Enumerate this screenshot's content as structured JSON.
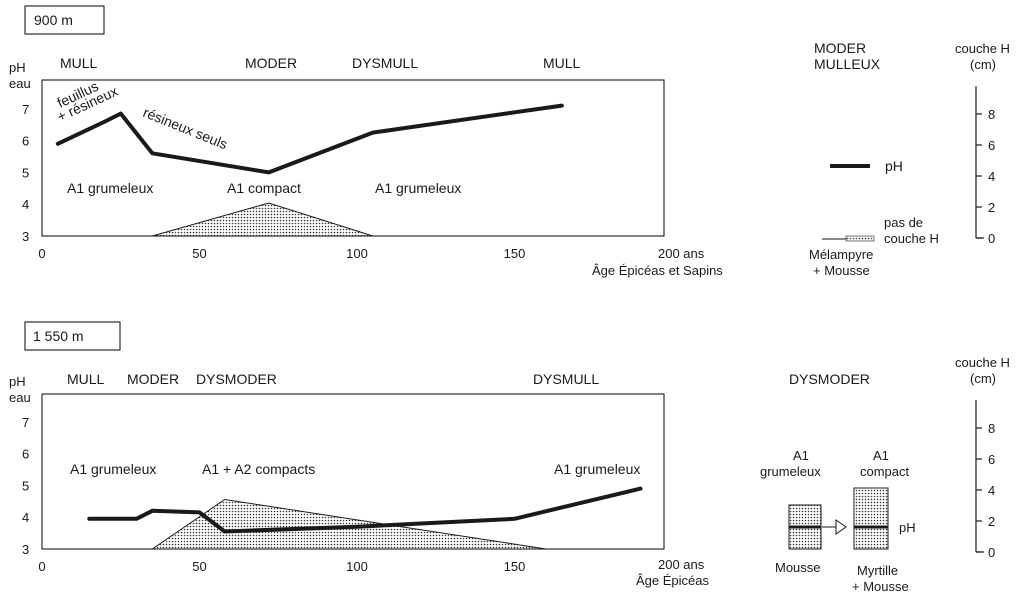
{
  "chart_data": [
    {
      "type": "line",
      "title": "900 m",
      "ylabel": "pH\neau",
      "ylim": [
        3,
        7.5
      ],
      "yticks": [
        3,
        4,
        5,
        6,
        7
      ],
      "xlim": [
        0,
        200
      ],
      "xticks": [
        0,
        50,
        100,
        150
      ],
      "x_end_label": "200 ans",
      "xlabel": "Âge Épicéas et Sapins",
      "humus_types": [
        "MULL",
        "MODER",
        "DYSMULL",
        "MULL"
      ],
      "horizon_labels": [
        "A1 grumeleux",
        "A1 compact",
        "A1 grumeleux"
      ],
      "annotations": [
        "feuillus",
        "+ résineux",
        "résineux seuls"
      ],
      "series": [
        {
          "name": "pH",
          "x": [
            5,
            20,
            25,
            35,
            72,
            105,
            165
          ],
          "y": [
            5.9,
            6.6,
            6.85,
            5.6,
            5.0,
            6.25,
            7.1
          ]
        }
      ],
      "h_layer_cm": {
        "x": [
          35,
          72,
          105
        ],
        "y": [
          0,
          2,
          0
        ]
      },
      "legend": {
        "humus": [
          "MODER",
          "MULLEUX"
        ],
        "ph": "pH",
        "no_h_layer": [
          "pas de",
          "couche H"
        ],
        "vegetation": [
          "Mélampyre",
          "+ Mousse"
        ]
      },
      "h_axis": {
        "title": [
          "couche H",
          "(cm)"
        ],
        "ticks": [
          0,
          2,
          4,
          6,
          8
        ]
      }
    },
    {
      "type": "line",
      "title": "1 550 m",
      "ylabel": "pH\neau",
      "ylim": [
        3,
        7.5
      ],
      "yticks": [
        3,
        4,
        5,
        6,
        7
      ],
      "xlim": [
        0,
        200
      ],
      "xticks": [
        0,
        50,
        100,
        150
      ],
      "x_end_label": "200 ans",
      "xlabel": "Âge Épicéas",
      "humus_types": [
        "MULL",
        "MODER",
        "DYSMODER",
        "DYSMULL"
      ],
      "horizon_labels": [
        "A1 grumeleux",
        "A1 + A2 compacts",
        "A1 grumeleux"
      ],
      "series": [
        {
          "name": "pH",
          "x": [
            15,
            30,
            35,
            50,
            58,
            100,
            150,
            190
          ],
          "y": [
            3.95,
            3.95,
            4.2,
            4.15,
            3.55,
            3.7,
            3.95,
            4.9
          ]
        }
      ],
      "h_layer_cm": {
        "x": [
          35,
          58,
          160
        ],
        "y": [
          0,
          3,
          0
        ]
      },
      "legend": {
        "humus": "DYSMODER",
        "left_col": [
          "A1",
          "grumeleux"
        ],
        "right_col": [
          "A1",
          "compact"
        ],
        "ph": "pH",
        "left_veg": "Mousse",
        "right_veg": [
          "Myrtille",
          "+ Mousse"
        ]
      },
      "h_axis": {
        "title": [
          "couche H",
          "(cm)"
        ],
        "ticks": [
          0,
          2,
          4,
          6,
          8
        ]
      }
    }
  ]
}
